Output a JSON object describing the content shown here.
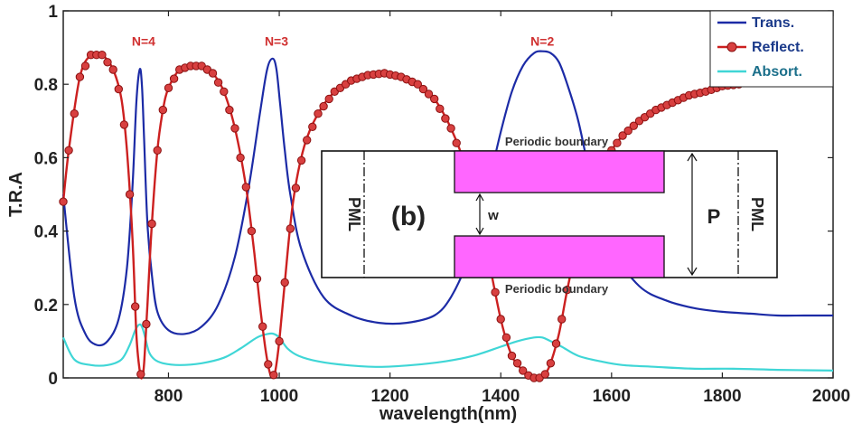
{
  "chart_data": {
    "type": "line",
    "xlabel": "wavelength(nm)",
    "ylabel": "T.R.A",
    "xlim": [
      610,
      2000
    ],
    "ylim": [
      0,
      1
    ],
    "xticks": [
      800,
      1000,
      1200,
      1400,
      1600,
      1800,
      2000
    ],
    "yticks": [
      0,
      0.2,
      0.4,
      0.6,
      0.8,
      1
    ],
    "ytick_labels": [
      "0",
      "0.2",
      "0.4",
      "0.6",
      "0.8",
      "1"
    ],
    "grid": false,
    "legend_position": "top-right",
    "series": [
      {
        "name": "Trans.",
        "color": "#1c2ba6",
        "marker": "none",
        "x": [
          610,
          630,
          650,
          670,
          690,
          710,
          725,
          735,
          742,
          748,
          752,
          756,
          762,
          770,
          780,
          800,
          830,
          860,
          890,
          920,
          945,
          965,
          978,
          988,
          995,
          1002,
          1010,
          1020,
          1040,
          1080,
          1130,
          1180,
          1230,
          1280,
          1310,
          1340,
          1370,
          1400,
          1420,
          1440,
          1460,
          1475,
          1490,
          1505,
          1520,
          1540,
          1560,
          1580,
          1600,
          1650,
          1700,
          1750,
          1800,
          1850,
          1900,
          1950,
          2000
        ],
        "y": [
          0.5,
          0.22,
          0.12,
          0.09,
          0.1,
          0.16,
          0.3,
          0.52,
          0.75,
          0.84,
          0.8,
          0.65,
          0.42,
          0.28,
          0.18,
          0.13,
          0.12,
          0.14,
          0.2,
          0.33,
          0.52,
          0.72,
          0.84,
          0.87,
          0.84,
          0.74,
          0.62,
          0.5,
          0.35,
          0.22,
          0.17,
          0.15,
          0.15,
          0.17,
          0.22,
          0.32,
          0.48,
          0.67,
          0.78,
          0.85,
          0.885,
          0.89,
          0.885,
          0.86,
          0.8,
          0.7,
          0.56,
          0.44,
          0.35,
          0.25,
          0.21,
          0.19,
          0.18,
          0.175,
          0.17,
          0.17,
          0.17
        ]
      },
      {
        "name": "Reflect.",
        "color": "#cc2020",
        "marker": "circle",
        "x": [
          610,
          620,
          640,
          660,
          680,
          700,
          715,
          725,
          735,
          742,
          748,
          752,
          756,
          762,
          770,
          780,
          790,
          800,
          820,
          840,
          860,
          880,
          900,
          920,
          940,
          955,
          965,
          975,
          982,
          988,
          993,
          1000,
          1010,
          1025,
          1045,
          1070,
          1100,
          1130,
          1160,
          1190,
          1220,
          1250,
          1280,
          1310,
          1340,
          1370,
          1400,
          1420,
          1440,
          1455,
          1465,
          1472,
          1480,
          1490,
          1505,
          1520,
          1540,
          1560,
          1580,
          1600,
          1620,
          1650,
          1680,
          1710,
          1740,
          1770,
          1800,
          1830
        ],
        "y": [
          0.48,
          0.62,
          0.82,
          0.88,
          0.88,
          0.84,
          0.76,
          0.62,
          0.38,
          0.12,
          0.02,
          0.0,
          0.04,
          0.2,
          0.42,
          0.62,
          0.73,
          0.79,
          0.84,
          0.85,
          0.85,
          0.83,
          0.78,
          0.68,
          0.52,
          0.34,
          0.2,
          0.08,
          0.02,
          0.0,
          0.02,
          0.1,
          0.26,
          0.48,
          0.63,
          0.72,
          0.78,
          0.81,
          0.825,
          0.83,
          0.82,
          0.8,
          0.76,
          0.68,
          0.56,
          0.38,
          0.16,
          0.06,
          0.02,
          0.0,
          0.0,
          0.0,
          0.01,
          0.04,
          0.12,
          0.24,
          0.38,
          0.5,
          0.57,
          0.62,
          0.66,
          0.7,
          0.73,
          0.75,
          0.77,
          0.78,
          0.795,
          0.8
        ]
      },
      {
        "name": "Absort.",
        "color": "#3fd6d6",
        "marker": "none",
        "x": [
          610,
          630,
          660,
          690,
          715,
          730,
          740,
          747,
          752,
          758,
          765,
          775,
          790,
          820,
          860,
          900,
          930,
          960,
          980,
          990,
          1000,
          1015,
          1035,
          1070,
          1120,
          1180,
          1240,
          1300,
          1350,
          1400,
          1430,
          1460,
          1475,
          1490,
          1510,
          1540,
          1580,
          1620,
          1680,
          1750,
          1820,
          1900,
          2000
        ],
        "y": [
          0.11,
          0.05,
          0.035,
          0.035,
          0.05,
          0.09,
          0.13,
          0.145,
          0.14,
          0.11,
          0.07,
          0.05,
          0.04,
          0.035,
          0.04,
          0.055,
          0.08,
          0.11,
          0.12,
          0.12,
          0.11,
          0.08,
          0.06,
          0.045,
          0.035,
          0.03,
          0.035,
          0.045,
          0.06,
          0.085,
          0.1,
          0.11,
          0.11,
          0.1,
          0.085,
          0.06,
          0.045,
          0.035,
          0.03,
          0.025,
          0.025,
          0.022,
          0.02
        ]
      }
    ],
    "annotations": [
      {
        "text": "N=4",
        "x": 755,
        "y": 0.905
      },
      {
        "text": "N=3",
        "x": 995,
        "y": 0.905
      },
      {
        "text": "N=2",
        "x": 1475,
        "y": 0.905
      }
    ]
  },
  "inset": {
    "label": "(b)",
    "pml_left": "PML",
    "pml_right": "PML",
    "top_boundary": "Periodic boundary",
    "bottom_boundary": "Periodic boundary",
    "gap_label": "w",
    "period_label": "P",
    "fill_color": "#ff66ff"
  }
}
